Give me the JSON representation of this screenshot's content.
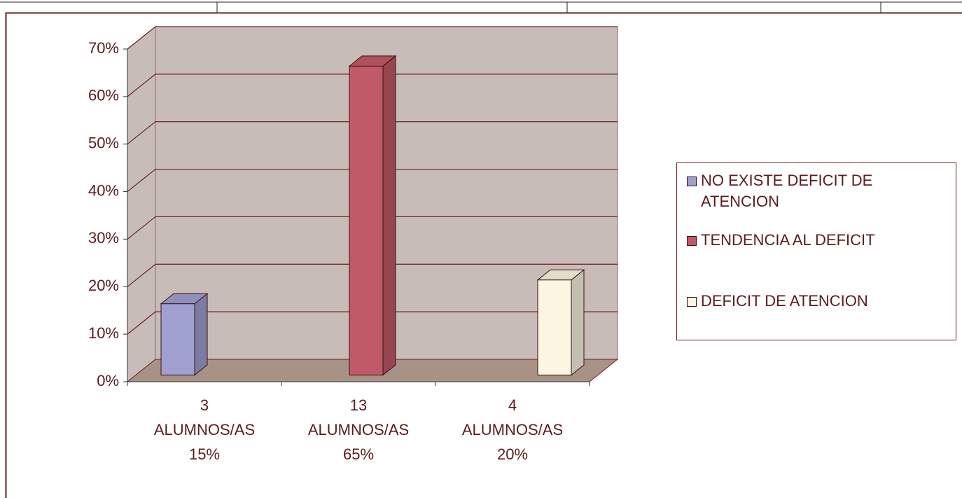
{
  "chart_data": {
    "type": "bar3d",
    "categories": [
      [
        "3",
        "ALUMNOS/AS",
        "15%"
      ],
      [
        "13",
        "ALUMNOS/AS",
        "65%"
      ],
      [
        "4",
        "ALUMNOS/AS",
        "20%"
      ]
    ],
    "series": [
      {
        "name": "NO EXISTE DEFICIT DE ATENCION",
        "color": "#9f9fd0"
      },
      {
        "name": "TENDENCIA AL DEFICIT",
        "color": "#c05a68"
      },
      {
        "name": "DEFICIT DE ATENCION",
        "color": "#fbf6e2"
      }
    ],
    "values": [
      15,
      65,
      20
    ],
    "ylim": [
      0,
      70
    ],
    "yticks": [
      {
        "value": 0,
        "label": "0%"
      },
      {
        "value": 10,
        "label": "10%"
      },
      {
        "value": 20,
        "label": "20%"
      },
      {
        "value": 30,
        "label": "30%"
      },
      {
        "value": 40,
        "label": "40%"
      },
      {
        "value": 50,
        "label": "50%"
      },
      {
        "value": 60,
        "label": "60%"
      },
      {
        "value": 70,
        "label": "70%"
      }
    ],
    "grid": true
  }
}
